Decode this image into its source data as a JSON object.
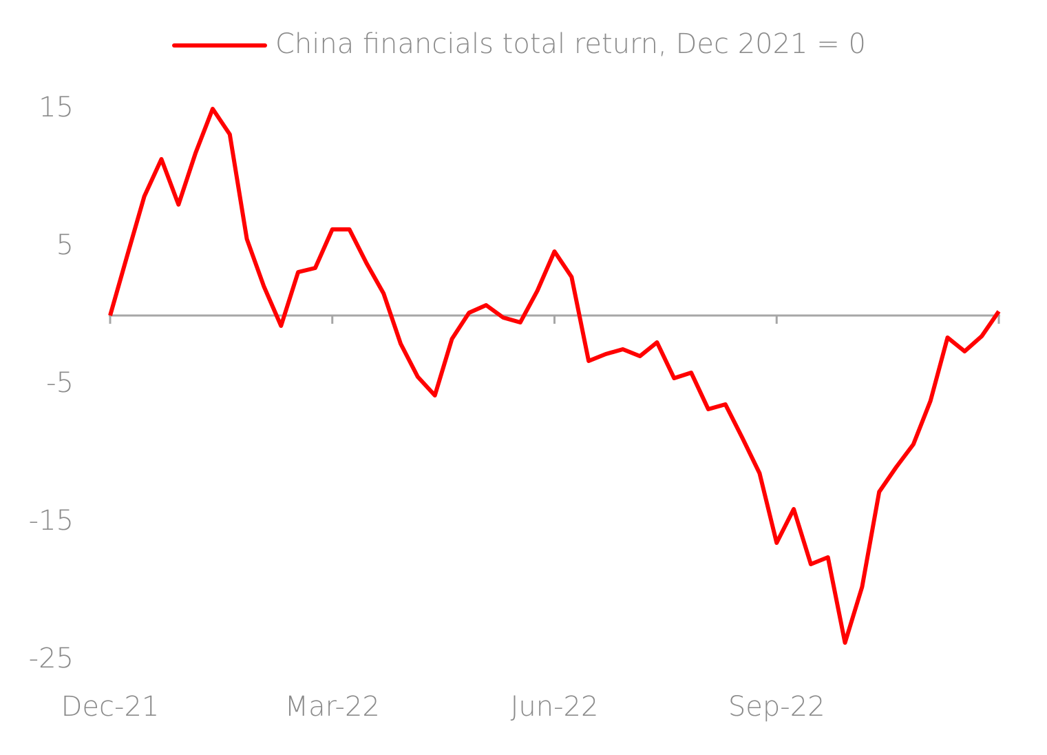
{
  "chart_data": {
    "type": "line",
    "categories": [
      "Dec-21",
      null,
      null,
      null,
      null,
      null,
      null,
      null,
      null,
      null,
      null,
      null,
      null,
      "Mar-22",
      null,
      null,
      null,
      null,
      null,
      null,
      null,
      null,
      null,
      null,
      null,
      null,
      "Jun-22",
      null,
      null,
      null,
      null,
      null,
      null,
      null,
      null,
      null,
      null,
      null,
      null,
      "Sep-22",
      null,
      null,
      null,
      null,
      null,
      null,
      null,
      null,
      null,
      null,
      null,
      null,
      null
    ],
    "series": [
      {
        "name": "China financials total return, Dec 2021 = 0",
        "color": "#ff0000",
        "values": [
          0,
          4.35,
          8.65,
          11.35,
          8.05,
          11.8,
          15,
          13.15,
          5.55,
          2.1,
          -0.75,
          3.15,
          3.45,
          6.25,
          6.25,
          3.8,
          1.6,
          -2.05,
          -4.45,
          -5.8,
          -1.7,
          0.2,
          0.75,
          -0.15,
          -0.5,
          1.8,
          4.65,
          2.8,
          -3.3,
          -2.8,
          -2.45,
          -2.95,
          -1.95,
          -4.55,
          -4.15,
          -6.8,
          -6.45,
          -8.9,
          -11.45,
          -16.5,
          -14.05,
          -18.05,
          -17.55,
          -23.75,
          -19.7,
          -12.8,
          -11,
          -9.35,
          -6.2,
          -1.6,
          -2.6,
          -1.5,
          0.3
        ]
      }
    ],
    "ylim": [
      -25,
      15
    ],
    "yticks": [
      15,
      5,
      -5,
      -15,
      -25
    ],
    "legend": "top"
  }
}
